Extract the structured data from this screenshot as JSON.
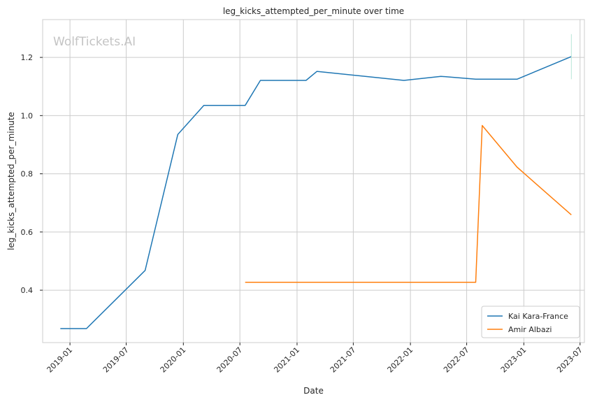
{
  "watermark": "WolfTickets.AI",
  "chart_data": {
    "type": "line",
    "title": "leg_kicks_attempted_per_minute over time",
    "xlabel": "Date",
    "ylabel": "leg_kicks_attempted_per_minute",
    "x_ticks": [
      "2019-01",
      "2019-07",
      "2020-01",
      "2020-07",
      "2021-01",
      "2021-07",
      "2022-01",
      "2022-07",
      "2023-01",
      "2023-07"
    ],
    "y_ticks": [
      "0.4",
      "0.6",
      "0.8",
      "1.0",
      "1.2"
    ],
    "xlim": [
      "2018-10-05",
      "2023-07-15"
    ],
    "ylim": [
      0.22,
      1.33
    ],
    "grid": true,
    "legend_position": "lower-right",
    "series": [
      {
        "name": "Kai Kara-France",
        "color": "#1f77b4",
        "x": [
          "2018-12-01",
          "2019-02-23",
          "2019-08-31",
          "2019-12-14",
          "2020-03-07",
          "2020-07-18",
          "2020-09-05",
          "2021-01-30",
          "2021-03-06",
          "2021-12-11",
          "2022-04-09",
          "2022-07-30",
          "2022-12-10",
          "2023-06-03"
        ],
        "y": [
          0.268,
          0.268,
          0.468,
          0.935,
          1.035,
          1.035,
          1.121,
          1.121,
          1.152,
          1.121,
          1.135,
          1.125,
          1.125,
          1.203
        ]
      },
      {
        "name": "Amir Albazi",
        "color": "#ff7f0e",
        "x": [
          "2020-07-18",
          "2022-07-30",
          "2022-08-20",
          "2022-12-10",
          "2023-06-03"
        ],
        "y": [
          0.427,
          0.427,
          0.966,
          0.823,
          0.659
        ]
      }
    ]
  }
}
